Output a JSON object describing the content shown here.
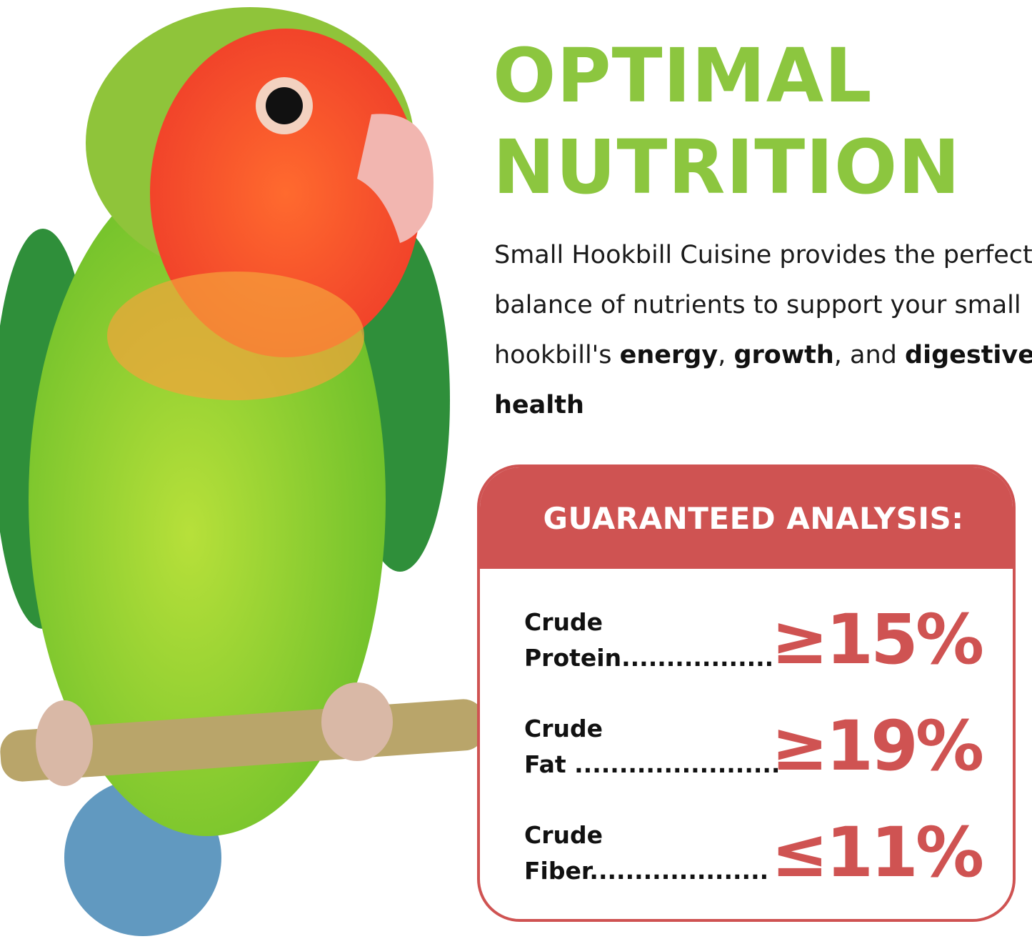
{
  "headline": {
    "line1": "OPTIMAL",
    "line2": "NUTRITION"
  },
  "description": {
    "intro": "Small Hookbill Cuisine provides the perfect balance of nutrients to support your small hookbill's ",
    "b1": "energy",
    "sep1": ", ",
    "b2": "growth",
    "sep2": ", and ",
    "b3": "digestive health"
  },
  "analysis": {
    "title": "GUARANTEED ANALYSIS:",
    "rows": [
      {
        "line1": "Crude",
        "line2": "Protein.................",
        "value": "≥15%"
      },
      {
        "line1": "Crude",
        "line2": "Fat .......................",
        "value": "≥19%"
      },
      {
        "line1": "Crude",
        "line2": "Fiber....................",
        "value": "≤11%"
      }
    ]
  },
  "colors": {
    "green": "#8cc63f",
    "red": "#cf5352"
  }
}
